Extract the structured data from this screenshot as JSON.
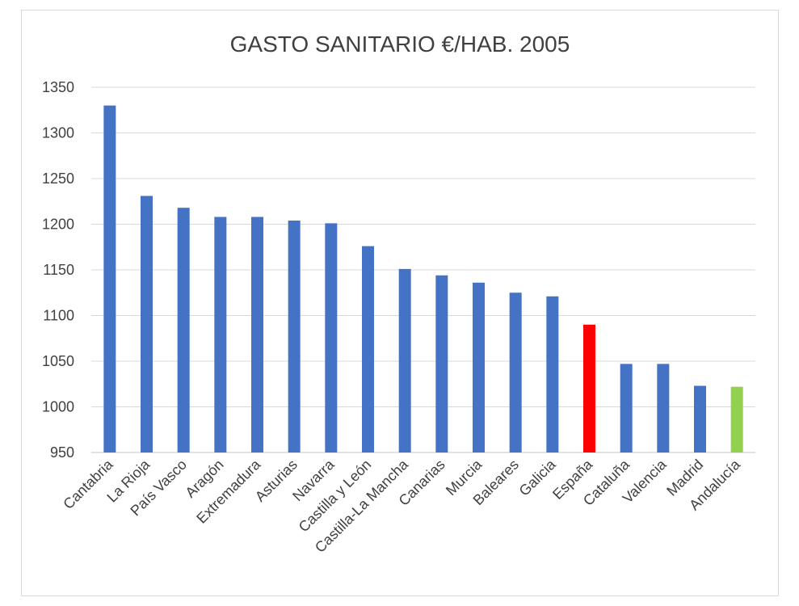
{
  "chart_data": {
    "type": "bar",
    "title": "GASTO SANITARIO €/HAB. 2005",
    "xlabel": "",
    "ylabel": "",
    "ylim": [
      950,
      1350
    ],
    "yticks": [
      950,
      1000,
      1050,
      1100,
      1150,
      1200,
      1250,
      1300,
      1350
    ],
    "grid": true,
    "legend": "none",
    "categories": [
      "Cantabria",
      "La Rioja",
      "País Vasco",
      "Aragón",
      "Extremadura",
      "Asturias",
      "Navarra",
      "Castilla y León",
      "Castilla-La Mancha",
      "Canarias",
      "Murcia",
      "Baleares",
      "Galicia",
      "España",
      "Cataluña",
      "Valencia",
      "Madrid",
      "Andalucía"
    ],
    "values": [
      1330,
      1231,
      1218,
      1208,
      1208,
      1204,
      1201,
      1176,
      1151,
      1144,
      1136,
      1125,
      1121,
      1090,
      1047,
      1047,
      1023,
      1022
    ],
    "colors": {
      "default": "#4472c4",
      "España": "#ff0000",
      "Andalucía": "#92d050",
      "grid": "#d9d9d9",
      "text": "#404040"
    }
  }
}
